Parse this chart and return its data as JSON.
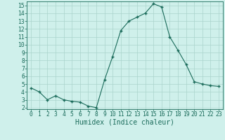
{
  "x": [
    0,
    1,
    2,
    3,
    4,
    5,
    6,
    7,
    8,
    9,
    10,
    11,
    12,
    13,
    14,
    15,
    16,
    17,
    18,
    19,
    20,
    21,
    22,
    23
  ],
  "y": [
    4.5,
    4.0,
    3.0,
    3.5,
    3.0,
    2.8,
    2.7,
    2.2,
    2.0,
    5.5,
    8.5,
    11.8,
    13.0,
    13.5,
    14.0,
    15.2,
    14.8,
    11.0,
    9.3,
    7.5,
    5.3,
    5.0,
    4.8,
    4.7
  ],
  "xlabel": "Humidex (Indice chaleur)",
  "ylim": [
    1.8,
    15.5
  ],
  "xlim": [
    -0.5,
    23.5
  ],
  "yticks": [
    2,
    3,
    4,
    5,
    6,
    7,
    8,
    9,
    10,
    11,
    12,
    13,
    14,
    15
  ],
  "xticks": [
    0,
    1,
    2,
    3,
    4,
    5,
    6,
    7,
    8,
    9,
    10,
    11,
    12,
    13,
    14,
    15,
    16,
    17,
    18,
    19,
    20,
    21,
    22,
    23
  ],
  "line_color": "#1a6b5a",
  "marker_color": "#1a6b5a",
  "bg_color": "#cff0eb",
  "grid_color": "#aad4cc",
  "axes_color": "#1a6b5a",
  "tick_label_color": "#1a6b5a",
  "xlabel_color": "#1a6b5a",
  "xlabel_fontsize": 7.0,
  "tick_fontsize": 5.8
}
